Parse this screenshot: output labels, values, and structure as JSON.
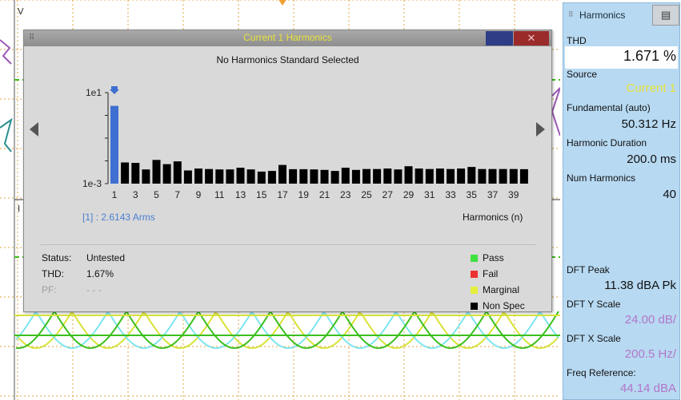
{
  "scope": {
    "left_labels": {
      "v": "V",
      "i": "I"
    },
    "trigger_color": "#f0a030",
    "trace_colors": {
      "green": "#3cbf1e",
      "yellow": "#d8e23a",
      "cyan": "#7ee4ee",
      "purple": "#9b59b6",
      "teal": "#2a8f8f"
    }
  },
  "dialog": {
    "title": "Current 1 Harmonics",
    "subtitle": "No Harmonics Standard Selected",
    "close_label": "✕",
    "chart": {
      "y_ticks": [
        "1e1",
        "1e-3"
      ],
      "x_ticks": [
        "1",
        "3",
        "5",
        "7",
        "9",
        "11",
        "13",
        "15",
        "17",
        "19",
        "21",
        "23",
        "25",
        "27",
        "29",
        "31",
        "33",
        "35",
        "37",
        "39"
      ],
      "selected_label": "[1] : 2.6143 Arms",
      "x_axis_label": "Harmonics (n)"
    },
    "status": {
      "status_key": "Status:",
      "status_val": "Untested",
      "thd_key": "THD:",
      "thd_val": "1.67%",
      "pf_key": "PF:",
      "pf_val": "- - -"
    },
    "legend": [
      {
        "label": "Pass",
        "color": "#3ee23e"
      },
      {
        "label": "Fail",
        "color": "#ee3030"
      },
      {
        "label": "Marginal",
        "color": "#e5ee3a"
      },
      {
        "label": "Non Spec",
        "color": "#000000"
      }
    ]
  },
  "chart_data": {
    "type": "bar",
    "title": "Current 1 Harmonics",
    "y_scale": "log",
    "ylim": [
      0.001,
      10
    ],
    "xlabel": "Harmonics (n)",
    "ylabel": "",
    "selected_harmonic": 1,
    "selected_value": "2.6143 Arms",
    "categories": [
      1,
      2,
      3,
      4,
      5,
      6,
      7,
      8,
      9,
      10,
      11,
      12,
      13,
      14,
      15,
      16,
      17,
      18,
      19,
      20,
      21,
      22,
      23,
      24,
      25,
      26,
      27,
      28,
      29,
      30,
      31,
      32,
      33,
      34,
      35,
      36,
      37,
      38,
      39,
      40
    ],
    "values": [
      2.6143,
      0.0085,
      0.0082,
      0.0042,
      0.011,
      0.0072,
      0.0095,
      0.0038,
      0.0046,
      0.0044,
      0.0042,
      0.0042,
      0.005,
      0.0042,
      0.0034,
      0.0036,
      0.0066,
      0.0043,
      0.0043,
      0.0042,
      0.004,
      0.0036,
      0.005,
      0.004,
      0.0044,
      0.0044,
      0.0046,
      0.0042,
      0.0058,
      0.0046,
      0.0044,
      0.0046,
      0.0044,
      0.0046,
      0.0054,
      0.0044,
      0.0044,
      0.0044,
      0.0044,
      0.0043
    ],
    "bar_colors": {
      "selected": "#3e6fd1",
      "non_spec": "#000000"
    }
  },
  "panel": {
    "tab_label": "Harmonics",
    "tab_color": "#b7d9f2",
    "items": [
      {
        "label": "THD",
        "value": "1.671 %"
      },
      {
        "label": "Source",
        "value": "Current 1"
      },
      {
        "label": "Fundamental (auto)",
        "value": "50.312 Hz"
      },
      {
        "label": "Harmonic Duration",
        "value": "200.0 ms"
      },
      {
        "label": "Num Harmonics",
        "value": "40"
      },
      {
        "label": "DFT Peak",
        "value": "11.38 dBA Pk"
      },
      {
        "label": "DFT Y Scale",
        "value": "24.00 dB/"
      },
      {
        "label": "DFT X Scale",
        "value": "200.5 Hz/"
      },
      {
        "label": "Freq Reference:",
        "value": "44.14 dBA"
      }
    ]
  }
}
